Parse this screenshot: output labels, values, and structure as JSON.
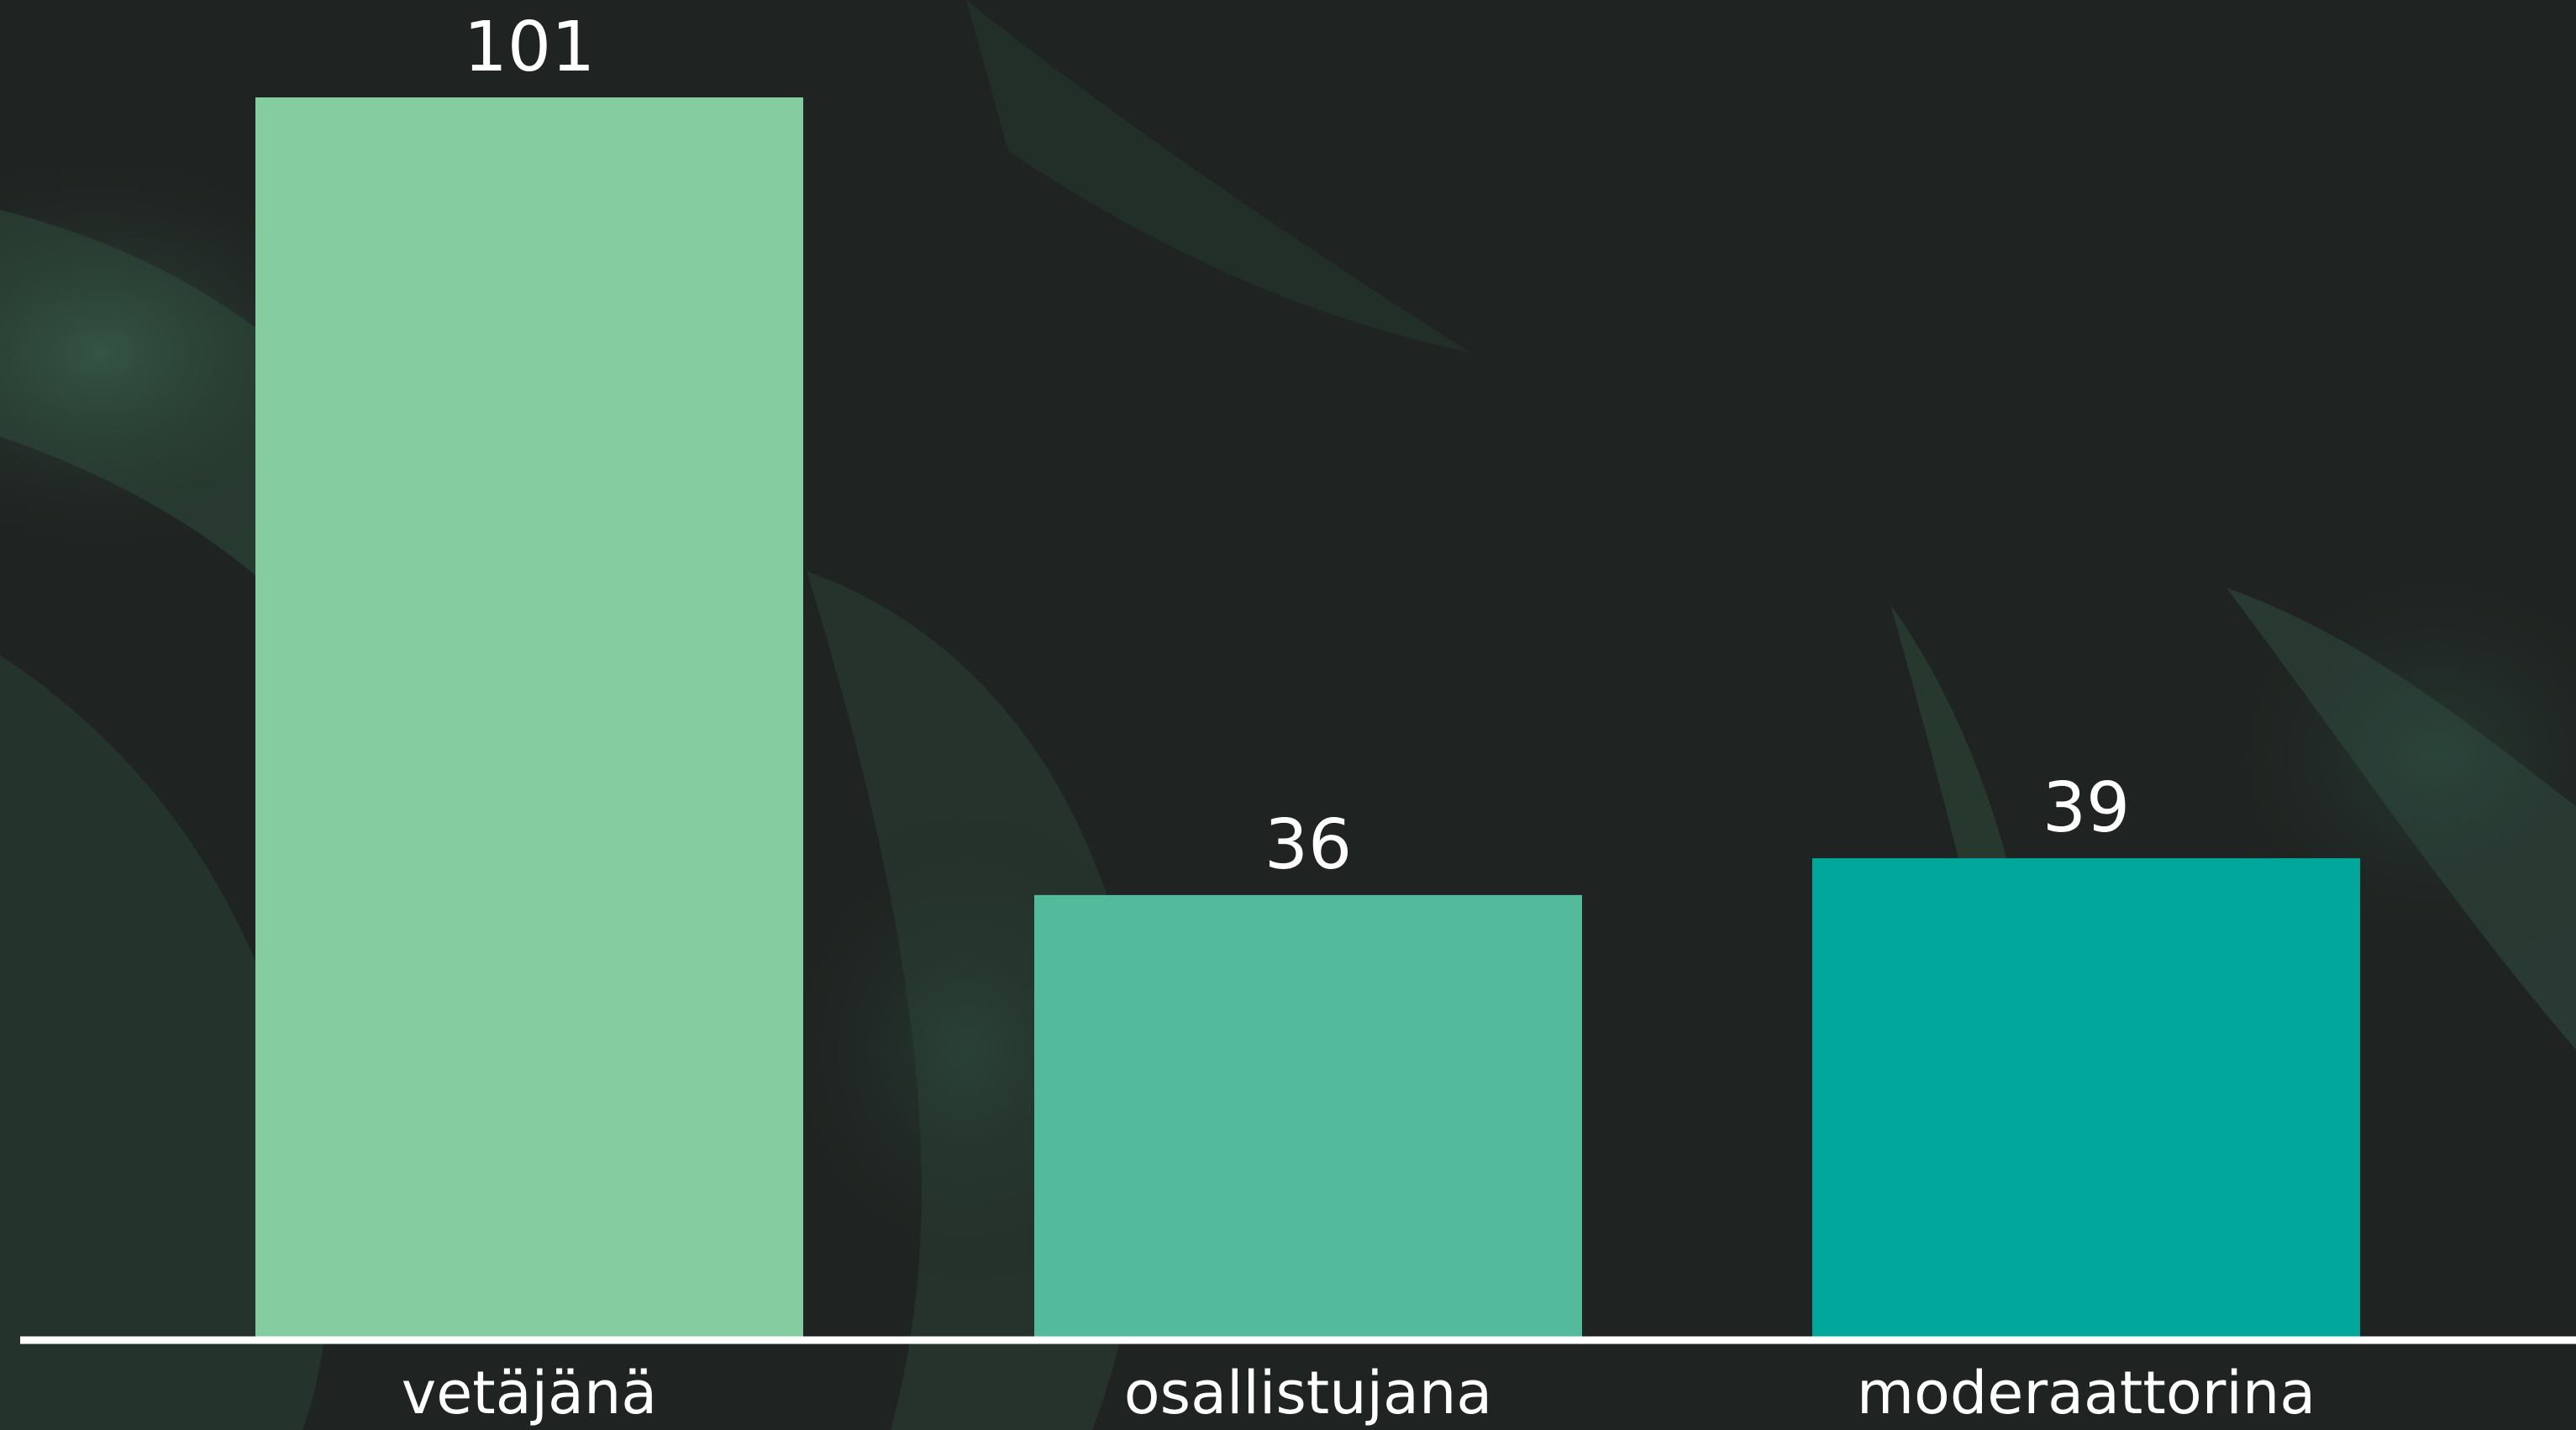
{
  "chart_data": {
    "type": "bar",
    "categories": [
      "vetäjänä",
      "osallistujana",
      "moderaattorina"
    ],
    "values": [
      101,
      36,
      39
    ],
    "data_labels": [
      "101",
      "36",
      "39"
    ],
    "colors": [
      "#85cca1",
      "#53ba9c",
      "#00a79a"
    ],
    "title": "",
    "xlabel": "",
    "ylabel": "",
    "ylim": [
      0,
      101
    ],
    "grid": false,
    "legend": "none"
  },
  "colors": {
    "background": "#1f2321",
    "leaf_tint": "#2e4a3d",
    "axis": "#ffffff",
    "text": "#ffffff"
  }
}
